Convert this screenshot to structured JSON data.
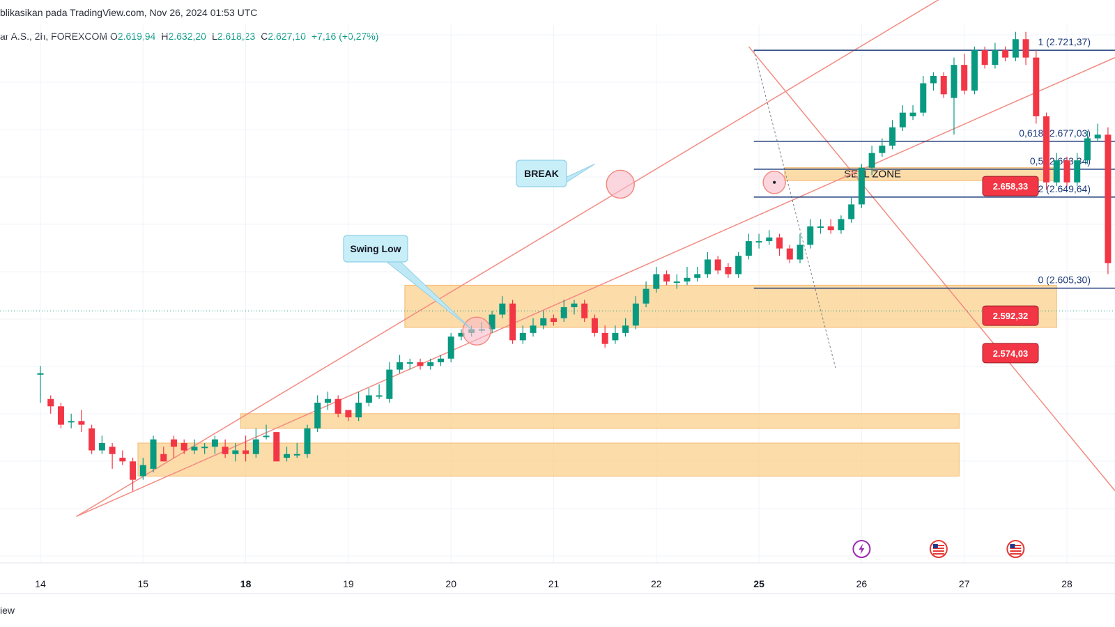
{
  "header": {
    "published": "blikasikan pada TradingView.com, Nov 26, 2024 01:53 UTC",
    "symbol": "ar A.S., 2h, FOREXCOM",
    "ohlc": [
      {
        "label": "O",
        "value": "2.619,94"
      },
      {
        "label": "H",
        "value": "2.632,20"
      },
      {
        "label": "L",
        "value": "2.618,23"
      },
      {
        "label": "C",
        "value": "2.627,10"
      },
      {
        "label": "",
        "value": "+7,16 (+0,27%)"
      }
    ]
  },
  "footer": {
    "brand": "iew"
  },
  "colors": {
    "up": "#089981",
    "down": "#f23645",
    "zone": "#fbd08c",
    "fib": "#1c3a7a",
    "trend": "#f28b82",
    "badge": "#f23645"
  },
  "chart_data": {
    "type": "candlestick",
    "x_ticks": [
      {
        "label": "14",
        "bold": false
      },
      {
        "label": "15",
        "bold": false
      },
      {
        "label": "18",
        "bold": true
      },
      {
        "label": "19",
        "bold": false
      },
      {
        "label": "20",
        "bold": false
      },
      {
        "label": "21",
        "bold": false
      },
      {
        "label": "22",
        "bold": false
      },
      {
        "label": "25",
        "bold": true
      },
      {
        "label": "26",
        "bold": false
      },
      {
        "label": "27",
        "bold": false
      },
      {
        "label": "28",
        "bold": false
      }
    ],
    "candles": [
      [
        0.0,
        2604,
        2604,
        2606,
        2596
      ],
      [
        0.1,
        2597,
        2595,
        2598,
        2593
      ],
      [
        0.2,
        2595,
        2590,
        2596,
        2589
      ],
      [
        0.3,
        2591,
        2591,
        2593,
        2589
      ],
      [
        0.4,
        2591,
        2590,
        2594,
        2588
      ],
      [
        0.5,
        2589,
        2583,
        2590,
        2582
      ],
      [
        0.6,
        2583,
        2585,
        2587,
        2582
      ],
      [
        0.7,
        2584,
        2582,
        2585,
        2578
      ],
      [
        0.8,
        2581,
        2580,
        2583,
        2579
      ],
      [
        0.9,
        2580,
        2575,
        2581,
        2572
      ],
      [
        1.0,
        2576,
        2579,
        2581,
        2575
      ],
      [
        1.1,
        2578,
        2586,
        2587,
        2577
      ],
      [
        1.2,
        2582,
        2580,
        2584,
        2580
      ],
      [
        1.3,
        2586,
        2584,
        2587,
        2581
      ],
      [
        1.4,
        2585,
        2583,
        2586,
        2582
      ],
      [
        1.5,
        2583,
        2584,
        2586,
        2582
      ],
      [
        1.6,
        2584,
        2584,
        2585,
        2582
      ],
      [
        1.7,
        2584,
        2586,
        2587,
        2582
      ],
      [
        1.8,
        2584,
        2582,
        2586,
        2581
      ],
      [
        1.9,
        2582,
        2583,
        2585,
        2580
      ],
      [
        2.0,
        2583,
        2582,
        2587,
        2580
      ],
      [
        2.1,
        2582,
        2586,
        2589,
        2581
      ],
      [
        2.2,
        2587,
        2587,
        2590,
        2586
      ],
      [
        2.3,
        2588,
        2580,
        2588,
        2580
      ],
      [
        2.4,
        2581,
        2582,
        2584,
        2580
      ],
      [
        2.5,
        2582,
        2582,
        2585,
        2581
      ],
      [
        2.6,
        2582,
        2589,
        2590,
        2581
      ],
      [
        2.7,
        2589,
        2596,
        2598,
        2588
      ],
      [
        2.8,
        2596,
        2597,
        2599,
        2594
      ],
      [
        2.9,
        2597,
        2593,
        2598,
        2592
      ],
      [
        3.0,
        2594,
        2592,
        2594,
        2591
      ],
      [
        3.1,
        2592,
        2596,
        2599,
        2591
      ],
      [
        3.2,
        2596,
        2598,
        2600,
        2595
      ],
      [
        3.3,
        2598,
        2598,
        2601,
        2597
      ],
      [
        3.4,
        2597,
        2605,
        2607,
        2596
      ],
      [
        3.5,
        2605,
        2607,
        2609,
        2604
      ],
      [
        3.6,
        2607,
        2607,
        2608,
        2605
      ],
      [
        3.7,
        2607,
        2606,
        2608,
        2605
      ],
      [
        3.8,
        2606,
        2607,
        2608,
        2605
      ],
      [
        3.9,
        2607,
        2608,
        2609,
        2606
      ],
      [
        4.0,
        2608,
        2614,
        2615,
        2607
      ],
      [
        4.1,
        2614,
        2615,
        2616,
        2613
      ],
      [
        4.2,
        2615,
        2616,
        2617,
        2614
      ],
      [
        4.3,
        2616,
        2616,
        2618,
        2615
      ],
      [
        4.4,
        2616,
        2620,
        2621,
        2615
      ],
      [
        4.5,
        2620,
        2623,
        2625,
        2619
      ],
      [
        4.6,
        2623,
        2613,
        2624,
        2612
      ],
      [
        4.7,
        2613,
        2615,
        2617,
        2612
      ],
      [
        4.8,
        2615,
        2617,
        2619,
        2614
      ],
      [
        4.9,
        2617,
        2619,
        2621,
        2616
      ],
      [
        5.0,
        2619,
        2618,
        2620,
        2617
      ],
      [
        5.1,
        2619,
        2622,
        2624,
        2618
      ],
      [
        5.2,
        2622,
        2623,
        2624,
        2620
      ],
      [
        5.3,
        2623,
        2619,
        2624,
        2618
      ],
      [
        5.4,
        2619,
        2615,
        2620,
        2614
      ],
      [
        5.5,
        2615,
        2612,
        2617,
        2611
      ],
      [
        5.6,
        2613,
        2615,
        2617,
        2612
      ],
      [
        5.7,
        2615,
        2617,
        2619,
        2614
      ],
      [
        5.8,
        2617,
        2623,
        2625,
        2616
      ],
      [
        5.9,
        2623,
        2627,
        2629,
        2622
      ],
      [
        6.0,
        2627,
        2631,
        2633,
        2626
      ],
      [
        6.1,
        2631,
        2629,
        2632,
        2628
      ],
      [
        6.2,
        2629,
        2629,
        2631,
        2627
      ],
      [
        6.3,
        2629,
        2630,
        2633,
        2628
      ],
      [
        6.4,
        2630,
        2631,
        2633,
        2629
      ],
      [
        6.5,
        2631,
        2635,
        2637,
        2630
      ],
      [
        6.6,
        2635,
        2632,
        2636,
        2631
      ],
      [
        6.7,
        2633,
        2631,
        2634,
        2630
      ],
      [
        6.8,
        2631,
        2636,
        2637,
        2630
      ],
      [
        6.9,
        2636,
        2640,
        2642,
        2635
      ],
      [
        7.0,
        2640,
        2640,
        2642,
        2638
      ],
      [
        7.1,
        2640,
        2641,
        2643,
        2639
      ],
      [
        7.2,
        2641,
        2638,
        2642,
        2636
      ],
      [
        7.3,
        2638,
        2635,
        2639,
        2634
      ],
      [
        7.4,
        2635,
        2639,
        2642,
        2634
      ],
      [
        7.5,
        2639,
        2644,
        2646,
        2638
      ],
      [
        7.6,
        2644,
        2644,
        2646,
        2642
      ],
      [
        7.7,
        2644,
        2643,
        2646,
        2642
      ],
      [
        7.8,
        2643,
        2646,
        2647,
        2642
      ],
      [
        7.9,
        2646,
        2650,
        2652,
        2645
      ],
      [
        8.0,
        2650,
        2660,
        2661,
        2649
      ],
      [
        8.1,
        2660,
        2664,
        2666,
        2658
      ],
      [
        8.2,
        2664,
        2666,
        2668,
        2663
      ],
      [
        8.3,
        2666,
        2671,
        2673,
        2665
      ],
      [
        8.4,
        2671,
        2675,
        2677,
        2670
      ],
      [
        8.5,
        2674,
        2675,
        2677,
        2673
      ],
      [
        8.6,
        2675,
        2683,
        2685,
        2674
      ],
      [
        8.7,
        2683,
        2685,
        2686,
        2681
      ],
      [
        8.8,
        2685,
        2680,
        2686,
        2679
      ],
      [
        8.9,
        2679,
        2688,
        2690,
        2669
      ],
      [
        9.0,
        2688,
        2681,
        2691,
        2680
      ],
      [
        9.1,
        2681,
        2692,
        2693,
        2680
      ],
      [
        9.2,
        2692,
        2688,
        2693,
        2687
      ],
      [
        9.3,
        2688,
        2692,
        2694,
        2687
      ],
      [
        9.4,
        2692,
        2690,
        2693,
        2689
      ],
      [
        9.5,
        2690,
        2695,
        2697,
        2689
      ],
      [
        9.6,
        2695,
        2690,
        2697,
        2688
      ],
      [
        9.7,
        2690,
        2674,
        2692,
        2672
      ],
      [
        9.8,
        2674,
        2656,
        2675,
        2654
      ],
      [
        9.9,
        2656,
        2662,
        2664,
        2655
      ],
      [
        10.0,
        2662,
        2656,
        2663,
        2655
      ],
      [
        10.1,
        2656,
        2662,
        2664,
        2655
      ],
      [
        10.2,
        2662,
        2668,
        2670,
        2661
      ],
      [
        10.3,
        2668,
        2669,
        2672,
        2667
      ],
      [
        10.4,
        2669,
        2634,
        2671,
        2631
      ],
      [
        10.5,
        2634,
        2627,
        2635,
        2624
      ],
      [
        10.6,
        2627,
        2620,
        2628,
        2619
      ],
      [
        10.7,
        2620,
        2624,
        2625,
        2618
      ],
      [
        10.8,
        2624,
        2623,
        2626,
        2622
      ],
      [
        10.9,
        2623,
        2620,
        2624,
        2605
      ],
      [
        11.0,
        2621,
        2627,
        2629,
        2620
      ]
    ],
    "zones": [
      {
        "from": 2616.5,
        "to": 2628.0,
        "x0": 3.55,
        "x1": 9.9,
        "label": ""
      },
      {
        "from": 2656.5,
        "to": 2660.0,
        "x0": 7.25,
        "x1": 9.9,
        "label": "SELL ZONE"
      },
      {
        "from": 2589.0,
        "to": 2593.0,
        "x0": 1.95,
        "x1": 8.95,
        "label": ""
      },
      {
        "from": 2576.0,
        "to": 2585.0,
        "x0": 0.95,
        "x1": 8.95,
        "label": ""
      }
    ],
    "fib_levels": [
      {
        "label": "1 (2.721,37)",
        "price": 2692.0
      },
      {
        "label": "0,618 (2.677,03)",
        "price": 2667.2
      },
      {
        "label": "0,5 (2.663,34)",
        "price": 2659.6
      },
      {
        "label": "0,382 (2.649,64)",
        "price": 2652.0
      },
      {
        "label": "0 (2.605,30)",
        "price": 2627.2
      }
    ],
    "price_badges": [
      {
        "label": "2.658,33",
        "price": 2655.0
      },
      {
        "label": "2.592,32",
        "price": 2619.7
      },
      {
        "label": "2.574,03",
        "price": 2609.5
      }
    ],
    "annotations": [
      {
        "label": "Swing Low"
      },
      {
        "label": "BREAK"
      }
    ]
  }
}
